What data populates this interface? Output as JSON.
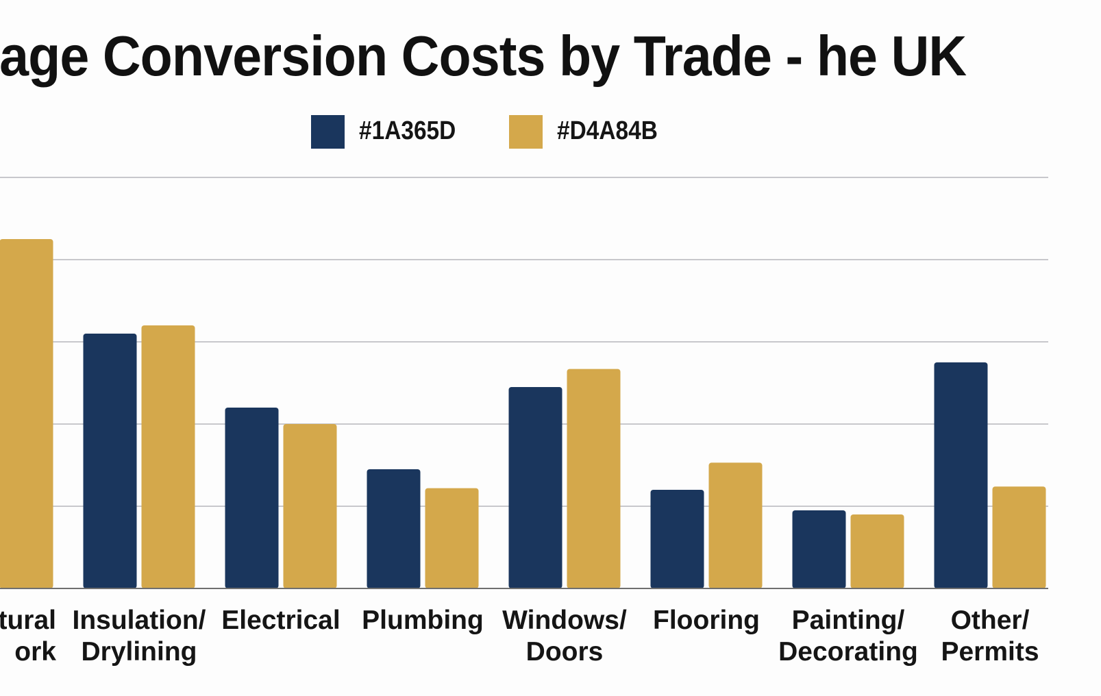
{
  "chart_data": {
    "type": "bar",
    "title": "arage Conversion Costs by Trade - he UK",
    "categories": [
      [
        "ctural",
        "ork"
      ],
      [
        "Insulation/",
        "Drylining"
      ],
      [
        "Electrical"
      ],
      [
        "Plumbing"
      ],
      [
        "Windows/",
        "Doors"
      ],
      [
        "Flooring"
      ],
      [
        "Painting/",
        "Decorating"
      ],
      [
        "Other/",
        "Permits"
      ]
    ],
    "series": [
      {
        "name": "#1A365D",
        "color": "#1A365D",
        "values": [
          null,
          3.1,
          2.2,
          1.45,
          2.45,
          1.2,
          0.95,
          2.75
        ]
      },
      {
        "name": "#D4A84B",
        "color": "#D4A84B",
        "values": [
          4.25,
          3.2,
          2.0,
          1.22,
          2.67,
          1.53,
          0.9,
          1.24
        ]
      }
    ],
    "ylim": [
      0,
      5
    ],
    "grid": true,
    "legend_position": "top-center",
    "xlabel": "",
    "ylabel": ""
  }
}
